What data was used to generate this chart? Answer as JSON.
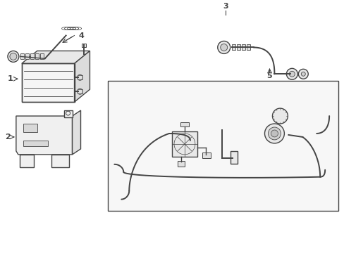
{
  "background_color": "#ffffff",
  "line_color": "#444444",
  "figsize": [
    4.89,
    3.6
  ],
  "dpi": 100
}
